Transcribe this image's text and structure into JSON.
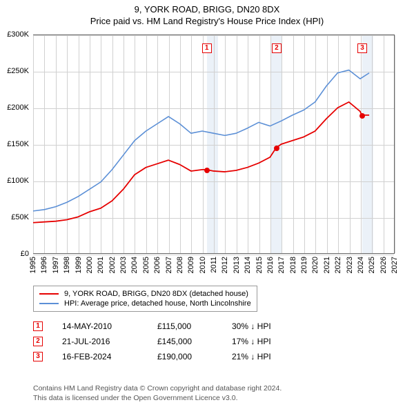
{
  "title": "9, YORK ROAD, BRIGG, DN20 8DX",
  "subtitle": "Price paid vs. HM Land Registry's House Price Index (HPI)",
  "chart": {
    "type": "line",
    "background_color": "#ffffff",
    "grid_color": "#d0d0d0",
    "axis_color": "#666666",
    "x_min": 1995,
    "x_max": 2027,
    "x_ticks": [
      1995,
      1996,
      1997,
      1998,
      1999,
      2000,
      2001,
      2002,
      2003,
      2004,
      2005,
      2006,
      2007,
      2008,
      2009,
      2010,
      2011,
      2012,
      2013,
      2014,
      2015,
      2016,
      2017,
      2018,
      2019,
      2020,
      2021,
      2022,
      2023,
      2024,
      2025,
      2026,
      2027
    ],
    "y_min": 0,
    "y_max": 300000,
    "y_ticks": [
      {
        "v": 0,
        "label": "£0"
      },
      {
        "v": 50000,
        "label": "£50K"
      },
      {
        "v": 100000,
        "label": "£100K"
      },
      {
        "v": 150000,
        "label": "£150K"
      },
      {
        "v": 200000,
        "label": "£200K"
      },
      {
        "v": 250000,
        "label": "£250K"
      },
      {
        "v": 300000,
        "label": "£300K"
      }
    ],
    "shaded_bands": [
      {
        "from": 2010.37,
        "to": 2011.37
      },
      {
        "from": 2016.05,
        "to": 2017.05
      },
      {
        "from": 2024.13,
        "to": 2025.13
      }
    ],
    "series": [
      {
        "id": "property",
        "label": "9, YORK ROAD, BRIGG, DN20 8DX (detached house)",
        "color": "#e60000",
        "line_width": 1.8,
        "points": [
          [
            1995,
            42000
          ],
          [
            1996,
            43000
          ],
          [
            1997,
            44000
          ],
          [
            1998,
            46000
          ],
          [
            1999,
            50000
          ],
          [
            2000,
            57000
          ],
          [
            2001,
            62000
          ],
          [
            2002,
            72000
          ],
          [
            2003,
            88000
          ],
          [
            2004,
            108000
          ],
          [
            2005,
            118000
          ],
          [
            2006,
            123000
          ],
          [
            2007,
            128000
          ],
          [
            2008,
            122000
          ],
          [
            2009,
            113000
          ],
          [
            2010,
            115000
          ],
          [
            2010.37,
            115000
          ],
          [
            2011,
            113000
          ],
          [
            2012,
            112000
          ],
          [
            2013,
            114000
          ],
          [
            2014,
            118000
          ],
          [
            2015,
            124000
          ],
          [
            2016,
            132000
          ],
          [
            2016.55,
            145000
          ],
          [
            2017,
            150000
          ],
          [
            2018,
            155000
          ],
          [
            2019,
            160000
          ],
          [
            2020,
            168000
          ],
          [
            2021,
            185000
          ],
          [
            2022,
            200000
          ],
          [
            2023,
            208000
          ],
          [
            2024,
            195000
          ],
          [
            2024.13,
            190000
          ],
          [
            2024.8,
            190000
          ]
        ]
      },
      {
        "id": "hpi",
        "label": "HPI: Average price, detached house, North Lincolnshire",
        "color": "#5b8fd6",
        "line_width": 1.6,
        "points": [
          [
            1995,
            58000
          ],
          [
            1996,
            60000
          ],
          [
            1997,
            64000
          ],
          [
            1998,
            70000
          ],
          [
            1999,
            78000
          ],
          [
            2000,
            88000
          ],
          [
            2001,
            98000
          ],
          [
            2002,
            115000
          ],
          [
            2003,
            135000
          ],
          [
            2004,
            155000
          ],
          [
            2005,
            168000
          ],
          [
            2006,
            178000
          ],
          [
            2007,
            188000
          ],
          [
            2008,
            178000
          ],
          [
            2009,
            165000
          ],
          [
            2010,
            168000
          ],
          [
            2011,
            165000
          ],
          [
            2012,
            162000
          ],
          [
            2013,
            165000
          ],
          [
            2014,
            172000
          ],
          [
            2015,
            180000
          ],
          [
            2016,
            175000
          ],
          [
            2017,
            182000
          ],
          [
            2018,
            190000
          ],
          [
            2019,
            197000
          ],
          [
            2020,
            208000
          ],
          [
            2021,
            230000
          ],
          [
            2022,
            248000
          ],
          [
            2023,
            252000
          ],
          [
            2024,
            240000
          ],
          [
            2024.8,
            248000
          ]
        ]
      }
    ],
    "markers": [
      {
        "n": "1",
        "x": 2010.37,
        "y": 115000,
        "box_color": "#e60000"
      },
      {
        "n": "2",
        "x": 2016.55,
        "y": 145000,
        "box_color": "#e60000"
      },
      {
        "n": "3",
        "x": 2024.13,
        "y": 190000,
        "box_color": "#e60000"
      }
    ],
    "marker_box_top_offset": 12
  },
  "legend": {
    "items": [
      {
        "series": "property"
      },
      {
        "series": "hpi"
      }
    ]
  },
  "sales": [
    {
      "n": "1",
      "date": "14-MAY-2010",
      "price": "£115,000",
      "delta": "30% ↓ HPI",
      "box_color": "#e60000"
    },
    {
      "n": "2",
      "date": "21-JUL-2016",
      "price": "£145,000",
      "delta": "17% ↓ HPI",
      "box_color": "#e60000"
    },
    {
      "n": "3",
      "date": "16-FEB-2024",
      "price": "£190,000",
      "delta": "21% ↓ HPI",
      "box_color": "#e60000"
    }
  ],
  "footer": {
    "line1": "Contains HM Land Registry data © Crown copyright and database right 2024.",
    "line2": "This data is licensed under the Open Government Licence v3.0."
  }
}
